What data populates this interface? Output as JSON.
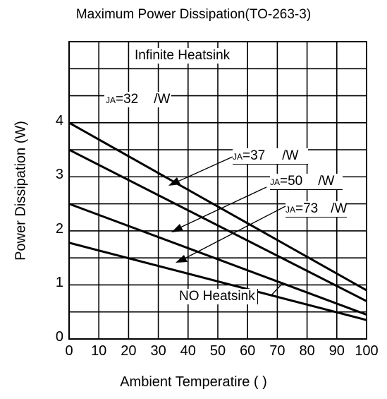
{
  "chart_data": {
    "type": "line",
    "title": "Maximum Power Dissipation(TO-263-3)",
    "xlabel": "Ambient Temperatire (   )",
    "ylabel": "Power Dissipation (W)",
    "xlim": [
      0,
      100
    ],
    "ylim": [
      0,
      5.5
    ],
    "x_ticks": [
      "0",
      "10",
      "20",
      "30",
      "40",
      "50",
      "60",
      "70",
      "80",
      "90",
      "100"
    ],
    "y_ticks": [
      "0",
      "1",
      "2",
      "3",
      "4"
    ],
    "grid": true,
    "series": [
      {
        "x": [
          0,
          100
        ],
        "y": [
          4.0,
          0.9
        ]
      },
      {
        "x": [
          0,
          100
        ],
        "y": [
          3.5,
          0.7
        ]
      },
      {
        "x": [
          0,
          100
        ],
        "y": [
          2.5,
          0.45
        ]
      },
      {
        "x": [
          0,
          100
        ],
        "y": [
          1.78,
          0.35
        ]
      }
    ],
    "annotations": {
      "infinite": "Infinite Heatsink",
      "none": "NO Heatsink",
      "a1_sub": "JA",
      "a1_val": "=32",
      "a1_unit": "/W",
      "a2_sub": "JA",
      "a2_val": "=37",
      "a2_unit": "/W",
      "a3_sub": "JA",
      "a3_val": "=50",
      "a3_unit": "/W",
      "a4_sub": "JA",
      "a4_val": "=73",
      "a4_unit": "/W"
    },
    "colors": {
      "line": "#000000",
      "grid": "#000000",
      "background": "#ffffff"
    }
  }
}
